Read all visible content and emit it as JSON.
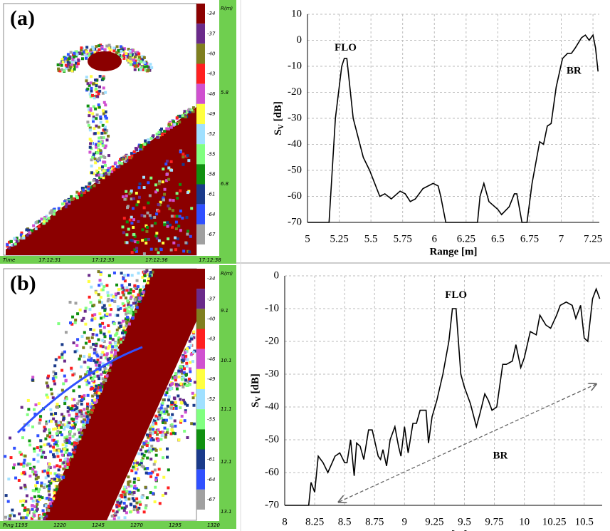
{
  "panels": [
    {
      "label": "(a)",
      "colorbar_ticks": [
        -34,
        -37,
        -40,
        -43,
        -46,
        -49,
        -52,
        -55,
        -58,
        -61,
        -64,
        -67
      ],
      "colorbar_colors": [
        "#8b0000",
        "#6a2a8a",
        "#7f7f1f",
        "#ff2020",
        "#d050d0",
        "#ffff40",
        "#a0e0ff",
        "#80ff80",
        "#109010",
        "#1a3a8a",
        "#3050ff",
        "#a0a0a0"
      ],
      "range_label": "R(m)",
      "range_ticks": [
        5.8,
        6.8
      ],
      "x_label": "Time",
      "x_ticks": [
        "17:12:31",
        "17:12:33",
        "17:12:36",
        "17:12:38"
      ]
    },
    {
      "label": "(b)",
      "colorbar_ticks": [
        -34,
        -37,
        -40,
        -43,
        -46,
        -49,
        -52,
        -55,
        -58,
        -61,
        -64,
        -67
      ],
      "colorbar_colors": [
        "#8b0000",
        "#6a2a8a",
        "#7f7f1f",
        "#ff2020",
        "#d050d0",
        "#ffff40",
        "#a0e0ff",
        "#80ff80",
        "#109010",
        "#1a3a8a",
        "#3050ff",
        "#a0a0a0"
      ],
      "range_label": "R(m)",
      "range_ticks": [
        9.1,
        10.1,
        11.1,
        12.1,
        13.1
      ],
      "x_label": "Ping",
      "x_ticks": [
        1195,
        1220,
        1245,
        1270,
        1295,
        1320
      ]
    }
  ],
  "chart_data": [
    {
      "type": "line",
      "color": "#000000",
      "grid": true,
      "xlabel": "Range [m]",
      "ylabel": [
        "S",
        "V",
        " [dB]"
      ],
      "xlim": [
        5,
        7.3
      ],
      "xticks": [
        5,
        5.25,
        5.5,
        5.75,
        6,
        6.25,
        6.5,
        6.75,
        7,
        7.25
      ],
      "ylim": [
        -70,
        10
      ],
      "yticks": [
        -70,
        -60,
        -50,
        -40,
        -30,
        -20,
        -10,
        0,
        10
      ],
      "x": [
        5,
        5.17,
        5.22,
        5.27,
        5.29,
        5.31,
        5.36,
        5.44,
        5.49,
        5.57,
        5.61,
        5.66,
        5.73,
        5.77,
        5.81,
        5.85,
        5.91,
        5.99,
        6.03,
        6.05,
        6.09,
        6.34,
        6.36,
        6.39,
        6.43,
        6.5,
        6.53,
        6.59,
        6.63,
        6.65,
        6.69,
        6.73,
        6.77,
        6.83,
        6.86,
        6.89,
        6.92,
        6.96,
        7.01,
        7.05,
        7.08,
        7.11,
        7.16,
        7.19,
        7.22,
        7.25,
        7.27,
        7.29
      ],
      "values": [
        -70,
        -70,
        -30,
        -10,
        -7,
        -7,
        -30,
        -45,
        -50,
        -60,
        -59,
        -61,
        -58,
        -59,
        -62,
        -61,
        -57,
        -55,
        -56,
        -60,
        -70,
        -70,
        -60,
        -55,
        -62,
        -65,
        -67,
        -64,
        -59,
        -59,
        -70,
        -70,
        -55,
        -39,
        -40,
        -33,
        -32,
        -18,
        -7,
        -5,
        -5,
        -3,
        1,
        2,
        0,
        2,
        -3,
        -12
      ],
      "annotations": [
        {
          "text": "FLO",
          "x": 5.3,
          "y": -3
        },
        {
          "text": "BR",
          "x": 7.1,
          "y": -12
        }
      ]
    },
    {
      "type": "line",
      "color": "#000000",
      "grid": true,
      "xlabel": "Range [m]",
      "ylabel": [
        "S",
        "V",
        " [dB]"
      ],
      "xlim": [
        8,
        10.65
      ],
      "xticks": [
        8,
        8.25,
        8.5,
        8.75,
        9,
        9.25,
        9.5,
        9.75,
        10,
        10.25,
        10.5
      ],
      "ylim": [
        -70,
        0
      ],
      "yticks": [
        -70,
        -60,
        -50,
        -40,
        -30,
        -20,
        -10,
        0
      ],
      "x": [
        8,
        8.2,
        8.22,
        8.25,
        8.28,
        8.32,
        8.36,
        8.42,
        8.46,
        8.5,
        8.52,
        8.55,
        8.58,
        8.6,
        8.63,
        8.66,
        8.7,
        8.73,
        8.78,
        8.8,
        8.82,
        8.85,
        8.88,
        8.92,
        8.95,
        8.97,
        9,
        9.03,
        9.07,
        9.1,
        9.13,
        9.18,
        9.2,
        9.23,
        9.27,
        9.32,
        9.37,
        9.4,
        9.43,
        9.47,
        9.5,
        9.55,
        9.6,
        9.63,
        9.67,
        9.7,
        9.73,
        9.77,
        9.82,
        9.85,
        9.9,
        9.93,
        9.97,
        10,
        10.05,
        10.1,
        10.13,
        10.18,
        10.22,
        10.27,
        10.3,
        10.35,
        10.4,
        10.43,
        10.47,
        10.5,
        10.53,
        10.57,
        10.6,
        10.63
      ],
      "values": [
        -70,
        -70,
        -63,
        -66,
        -55,
        -57,
        -60,
        -55,
        -54,
        -57,
        -57,
        -50,
        -61,
        -51,
        -52,
        -56,
        -47,
        -47,
        -55,
        -56,
        -53,
        -58,
        -50,
        -46,
        -52,
        -55,
        -46,
        -54,
        -45,
        -45,
        -41,
        -41,
        -51,
        -43,
        -38,
        -30,
        -20,
        -10,
        -10,
        -30,
        -34,
        -39,
        -46,
        -42,
        -36,
        -38,
        -41,
        -40,
        -27,
        -27,
        -26,
        -21,
        -28,
        -25,
        -17,
        -18,
        -12,
        -15,
        -16,
        -12,
        -9,
        -8,
        -9,
        -13,
        -9,
        -19,
        -20,
        -7,
        -4,
        -7
      ],
      "annotations": [
        {
          "text": "FLO",
          "x": 9.43,
          "y": -6
        },
        {
          "text": "BR",
          "x": 9.8,
          "y": -55
        }
      ],
      "arrow": {
        "from": [
          10.6,
          -33
        ],
        "to": [
          8.45,
          -69
        ]
      }
    }
  ]
}
